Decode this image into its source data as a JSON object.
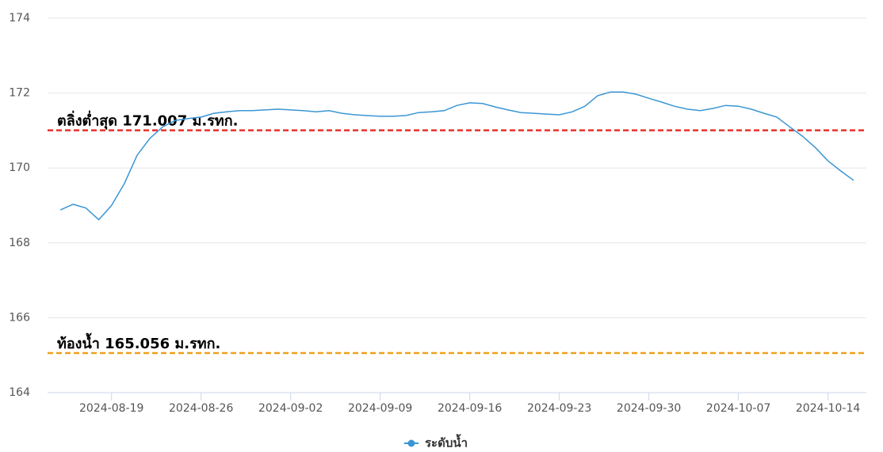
{
  "chart_data": {
    "type": "line",
    "x": [
      "2024-08-15",
      "2024-08-16",
      "2024-08-17",
      "2024-08-18",
      "2024-08-19",
      "2024-08-20",
      "2024-08-21",
      "2024-08-22",
      "2024-08-23",
      "2024-08-24",
      "2024-08-25",
      "2024-08-26",
      "2024-08-27",
      "2024-08-28",
      "2024-08-29",
      "2024-08-30",
      "2024-08-31",
      "2024-09-01",
      "2024-09-02",
      "2024-09-03",
      "2024-09-04",
      "2024-09-05",
      "2024-09-06",
      "2024-09-07",
      "2024-09-08",
      "2024-09-09",
      "2024-09-10",
      "2024-09-11",
      "2024-09-12",
      "2024-09-13",
      "2024-09-14",
      "2024-09-15",
      "2024-09-16",
      "2024-09-17",
      "2024-09-18",
      "2024-09-19",
      "2024-09-20",
      "2024-09-21",
      "2024-09-22",
      "2024-09-23",
      "2024-09-24",
      "2024-09-25",
      "2024-09-26",
      "2024-09-27",
      "2024-09-28",
      "2024-09-29",
      "2024-09-30",
      "2024-10-01",
      "2024-10-02",
      "2024-10-03",
      "2024-10-04",
      "2024-10-05",
      "2024-10-06",
      "2024-10-07",
      "2024-10-08",
      "2024-10-09",
      "2024-10-10",
      "2024-10-11",
      "2024-10-12",
      "2024-10-13",
      "2024-10-14",
      "2024-10-15",
      "2024-10-16"
    ],
    "series": [
      {
        "name": "ระดับน้ำ",
        "color": "#3a96d4",
        "values": [
          168.88,
          169.03,
          168.93,
          168.62,
          169.0,
          169.58,
          170.34,
          170.79,
          171.1,
          171.27,
          171.32,
          171.36,
          171.46,
          171.5,
          171.53,
          171.53,
          171.55,
          171.57,
          171.55,
          171.53,
          171.5,
          171.53,
          171.46,
          171.42,
          171.4,
          171.38,
          171.38,
          171.4,
          171.48,
          171.5,
          171.53,
          171.67,
          171.74,
          171.72,
          171.63,
          171.55,
          171.48,
          171.46,
          171.44,
          171.42,
          171.5,
          171.65,
          171.93,
          172.03,
          172.03,
          171.97,
          171.86,
          171.76,
          171.65,
          171.57,
          171.53,
          171.59,
          171.67,
          171.65,
          171.57,
          171.46,
          171.36,
          171.1,
          170.85,
          170.55,
          170.19,
          169.92,
          169.67
        ]
      }
    ],
    "xlim": [
      "2024-08-14",
      "2024-10-17"
    ],
    "xticks": [
      "2024-08-19",
      "2024-08-26",
      "2024-09-02",
      "2024-09-09",
      "2024-09-16",
      "2024-09-23",
      "2024-09-30",
      "2024-10-07",
      "2024-10-14"
    ],
    "ylim": [
      164,
      174
    ],
    "yticks": [
      164,
      166,
      168,
      170,
      172,
      174
    ],
    "grid": true,
    "reference_lines": [
      {
        "label": "ตลิ่งต่ำสุด 171.007 ม.รทก.",
        "value": 171.007,
        "color": "#e8312a"
      },
      {
        "label": "ท้องน้ำ 165.056 ม.รทก.",
        "value": 165.056,
        "color": "#f0a01c"
      }
    ],
    "legend": "bottom"
  }
}
